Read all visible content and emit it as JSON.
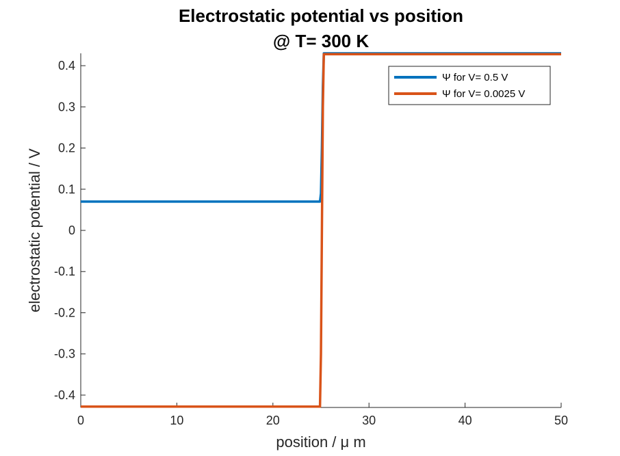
{
  "chart_data": {
    "type": "line",
    "title": [
      "Electrostatic potential vs position",
      "@ T= 300 K"
    ],
    "xlabel": "position / μ m",
    "ylabel": "electrostatic potential / V",
    "xlim": [
      0,
      50
    ],
    "ylim": [
      -0.43,
      0.43
    ],
    "xticks": [
      0,
      10,
      20,
      30,
      40,
      50
    ],
    "xtick_labels": [
      "0",
      "10",
      "20",
      "30",
      "40",
      "50"
    ],
    "yticks": [
      -0.4,
      -0.3,
      -0.2,
      -0.1,
      0,
      0.1,
      0.2,
      0.3,
      0.4
    ],
    "ytick_labels": [
      "-0.4",
      "-0.3",
      "-0.2",
      "-0.1",
      "0",
      "0.1",
      "0.2",
      "0.3",
      "0.4"
    ],
    "grid": false,
    "legend_position": "top-right",
    "series": [
      {
        "name": "Ψ for V= 0.5 V",
        "color": "#0072BD",
        "x": [
          0,
          24.9,
          25.0,
          25.1,
          25.2,
          25.3,
          50
        ],
        "y": [
          0.07,
          0.07,
          0.09,
          0.2,
          0.35,
          0.43,
          0.43
        ]
      },
      {
        "name": "Ψ for V= 0.0025 V",
        "color": "#D95319",
        "x": [
          0,
          24.9,
          25.0,
          25.1,
          25.2,
          25.3,
          50
        ],
        "y": [
          -0.428,
          -0.428,
          -0.3,
          0.0,
          0.3,
          0.428,
          0.428
        ]
      }
    ]
  }
}
